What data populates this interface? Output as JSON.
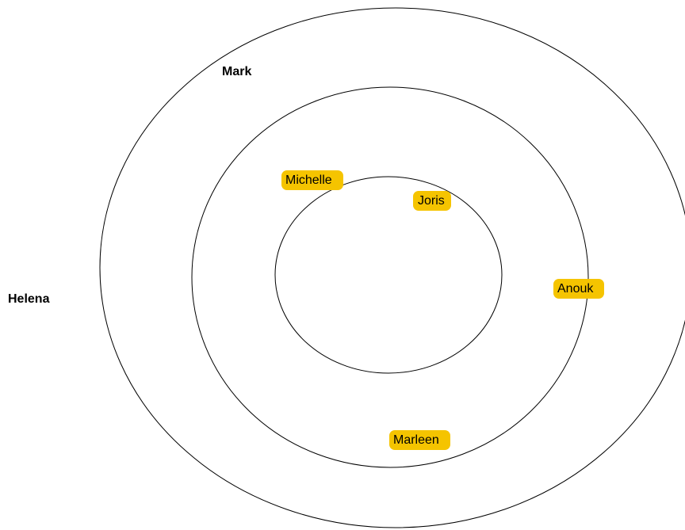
{
  "nodes": [
    {
      "label": "Mark"
    },
    {
      "label": "Helena"
    },
    {
      "label": "Michelle"
    },
    {
      "label": "Joris"
    },
    {
      "label": "Anouk"
    },
    {
      "label": "Marleen"
    }
  ]
}
